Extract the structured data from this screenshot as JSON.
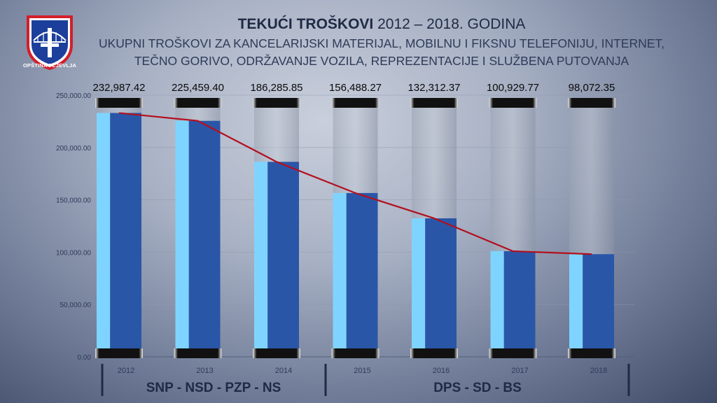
{
  "header": {
    "title_bold": "TEKUĆI TROŠKOVI",
    "title_rest": " 2012 – 2018. GODINA",
    "subtitle_line1": "UKUPNI TROŠKOVI ZA KANCELARIJSKI MATERIJAL, MOBILNU I FIKSNU TELEFONIJU, INTERNET,",
    "subtitle_line2": "TEČNO GORIVO, ODRŽAVANJE VOZILA, REPREZENTACIJE I SLUŽBENA PUTOVANJA"
  },
  "logo": {
    "label": "OPŠTINA PLJEVLJA",
    "icon": "coat-of-arms-bridge-cross"
  },
  "colors": {
    "bar_light": "#7fd4ff",
    "bar_dark": "#2a56a8",
    "trend_line": "#b3101e",
    "cap": "#000000"
  },
  "chart_data": {
    "type": "bar",
    "categories": [
      "2012",
      "2013",
      "2014",
      "2015",
      "2016",
      "2017",
      "2018"
    ],
    "values": [
      232987.42,
      225459.4,
      186285.85,
      156488.27,
      132312.37,
      100929.77,
      98072.35
    ],
    "value_labels": [
      "232,987.42",
      "225,459.40",
      "186,285.85",
      "156,488.27",
      "132,312.37",
      "100,929.77",
      "98,072.35"
    ],
    "ylim": [
      0,
      250000
    ],
    "yticks": [
      0,
      50000,
      100000,
      150000,
      200000,
      250000
    ],
    "ytick_labels": [
      "0.00",
      "50,000.00",
      "100,000.00",
      "150,000.00",
      "200,000.00",
      "250,000.00"
    ],
    "trend_line": true,
    "grid": true,
    "groups": [
      {
        "label": "SNP - NSD - PZP - NS",
        "from": 0,
        "to": 2
      },
      {
        "label": "DPS - SD - BS",
        "from": 3,
        "to": 6
      }
    ]
  }
}
